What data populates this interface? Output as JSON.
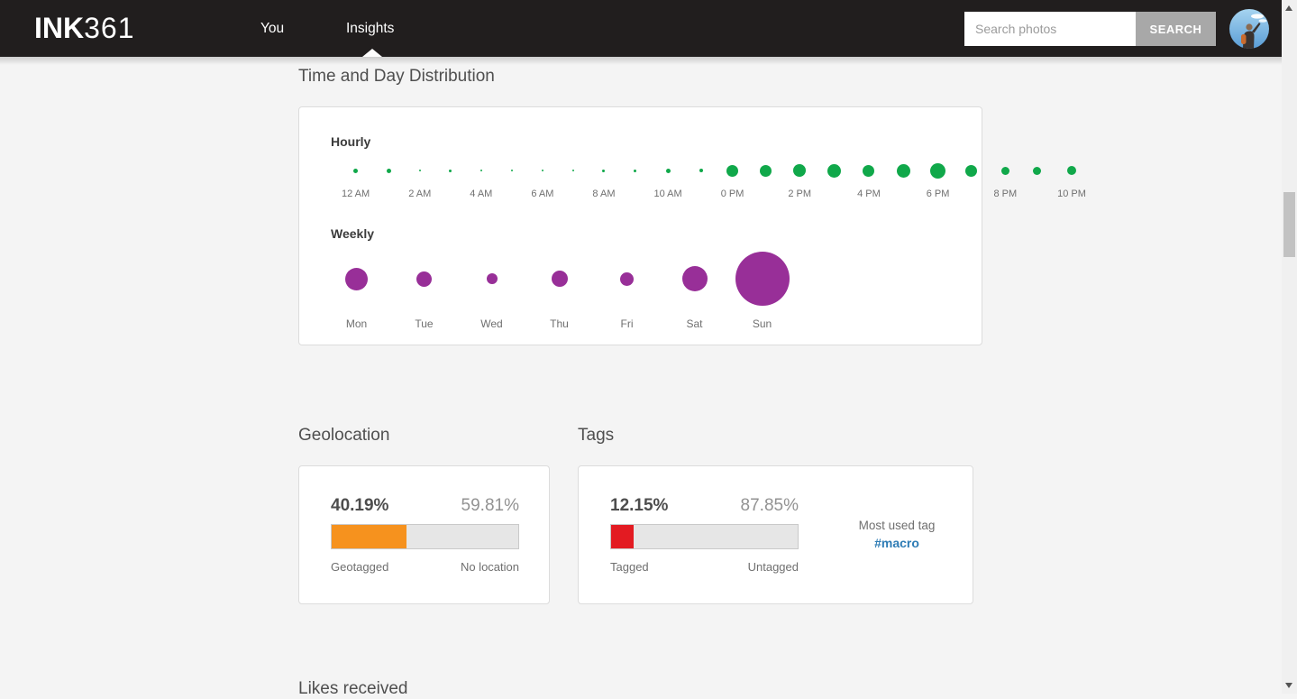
{
  "navbar": {
    "logo_bold": "INK",
    "logo_light": "361",
    "nav_you": "You",
    "nav_insights": "Insights",
    "search_placeholder": "Search photos",
    "search_button": "SEARCH"
  },
  "sections": {
    "time_day_title": "Time and Day Distribution",
    "geolocation_title": "Geolocation",
    "tags_title": "Tags",
    "likes_title": "Likes received"
  },
  "time_day": {
    "hourly_label": "Hourly",
    "weekly_label": "Weekly"
  },
  "geolocation": {
    "left_pct": "40.19%",
    "right_pct": "59.81%",
    "left_label": "Geotagged",
    "right_label": "No location",
    "left_value": 40.19,
    "fill_color": "#f6921e"
  },
  "tags": {
    "left_pct": "12.15%",
    "right_pct": "87.85%",
    "left_label": "Tagged",
    "right_label": "Untagged",
    "left_value": 12.15,
    "fill_color": "#e31b22",
    "most_used_label": "Most used tag",
    "most_used_tag": "#macro",
    "tag_color": "#2e7cb5"
  },
  "chart_data": [
    {
      "type": "bubble",
      "title": "Hourly",
      "note": "post activity per hour; bubble diameter in px read from screenshot, hour 23 has no bubble",
      "labels": [
        "12 AM",
        "",
        "2 AM",
        "",
        "4 AM",
        "",
        "6 AM",
        "",
        "8 AM",
        "",
        "10 AM",
        "",
        "0 PM",
        "",
        "2 PM",
        "",
        "4 PM",
        "",
        "6 PM",
        "",
        "8 PM",
        "",
        "10 PM",
        ""
      ],
      "sizes": [
        5,
        5,
        2,
        3,
        2,
        2,
        2,
        2,
        3,
        3,
        5,
        4,
        13,
        13,
        14,
        15,
        13,
        15,
        17,
        13,
        9,
        9,
        10,
        0
      ],
      "color": "#10a84a",
      "legend": "none",
      "grid": false
    },
    {
      "type": "bubble",
      "title": "Weekly",
      "note": "post activity per weekday; bubble diameter in px read from screenshot",
      "labels": [
        "Mon",
        "Tue",
        "Wed",
        "Thu",
        "Fri",
        "Sat",
        "Sun"
      ],
      "sizes": [
        25,
        17,
        12,
        18,
        15,
        28,
        60
      ],
      "color": "#982f98",
      "legend": "none",
      "grid": false
    }
  ]
}
